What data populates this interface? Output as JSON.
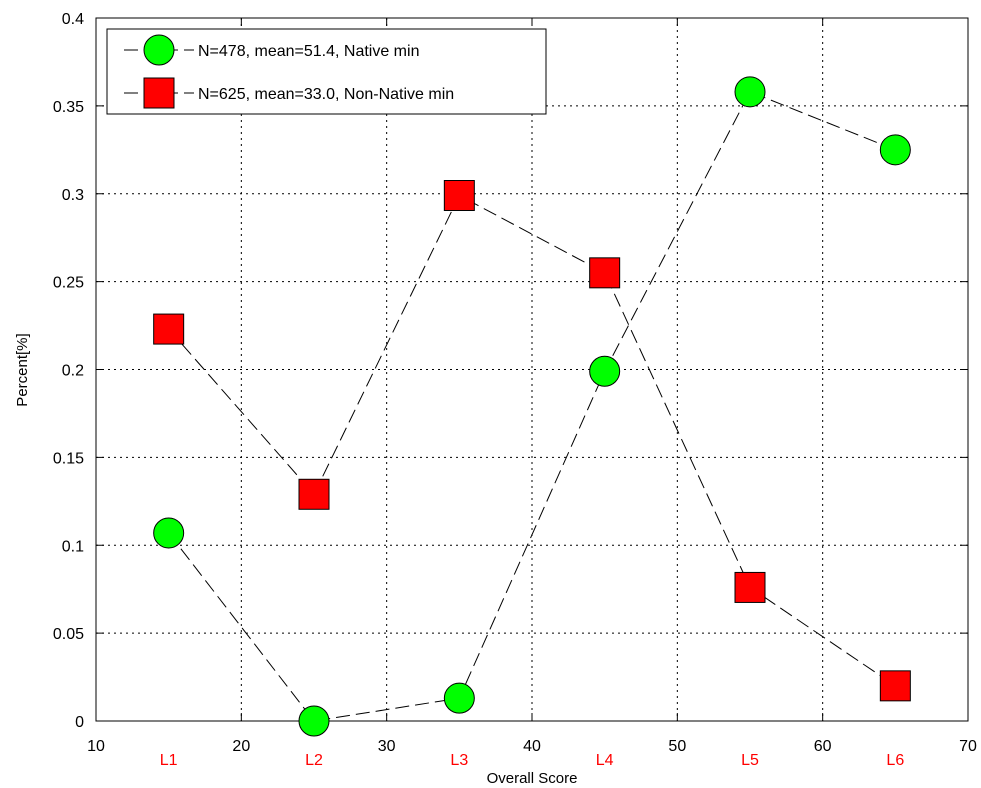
{
  "chart_data": {
    "type": "line",
    "title": "",
    "xlabel": "Overall Score",
    "ylabel": "Percent[%]",
    "xlim": [
      10,
      70
    ],
    "ylim": [
      0,
      0.4
    ],
    "x_ticks": [
      10,
      20,
      30,
      40,
      50,
      60,
      70
    ],
    "y_ticks": [
      0,
      0.05,
      0.1,
      0.15,
      0.2,
      0.25,
      0.3,
      0.35,
      0.4
    ],
    "x_tick_labels": [
      "10",
      "20",
      "30",
      "40",
      "50",
      "60",
      "70"
    ],
    "y_tick_labels": [
      "0",
      "0.05",
      "0.1",
      "0.15",
      "0.2",
      "0.25",
      "0.3",
      "0.35",
      "0.4"
    ],
    "level_labels": [
      {
        "x": 15,
        "label": "L1"
      },
      {
        "x": 25,
        "label": "L2"
      },
      {
        "x": 35,
        "label": "L3"
      },
      {
        "x": 45,
        "label": "L4"
      },
      {
        "x": 55,
        "label": "L5"
      },
      {
        "x": 65,
        "label": "L6"
      }
    ],
    "grid": true,
    "legend_position": "top-left",
    "series": [
      {
        "name": "N=478, mean=51.4, Native min",
        "marker": "circle",
        "color": "#00ff00",
        "x": [
          15,
          25,
          35,
          45,
          55,
          65
        ],
        "y": [
          0.107,
          0.0,
          0.013,
          0.199,
          0.358,
          0.325
        ]
      },
      {
        "name": "N=625, mean=33.0, Non-Native min",
        "marker": "square",
        "color": "#ff0000",
        "x": [
          15,
          25,
          35,
          45,
          55,
          65
        ],
        "y": [
          0.223,
          0.129,
          0.299,
          0.255,
          0.076,
          0.02
        ]
      }
    ],
    "level_label_color": "#ff0000"
  }
}
